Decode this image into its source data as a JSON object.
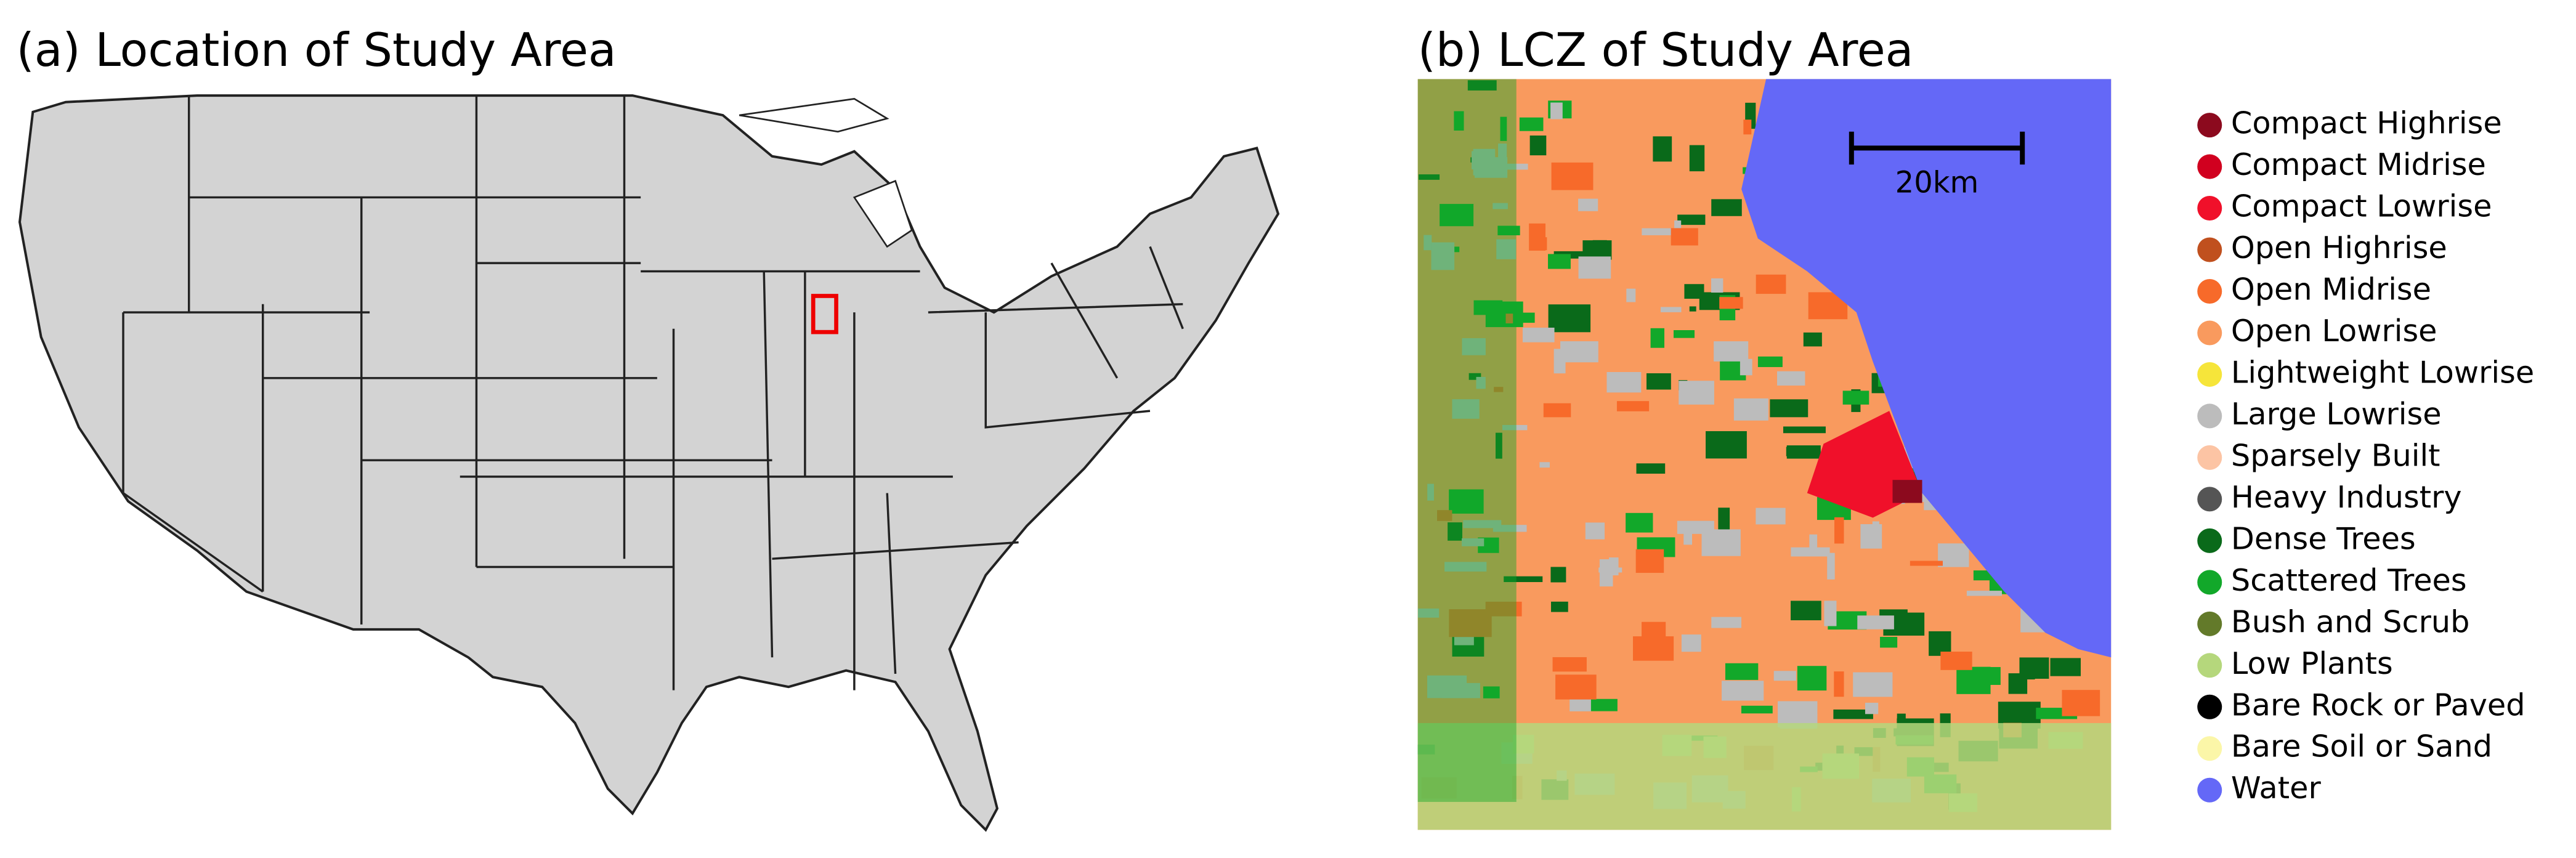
{
  "panel_a": {
    "title": "(a) Location of Study Area"
  },
  "panel_b": {
    "title": "(b) LCZ of Study Area",
    "scale_label": "20km"
  },
  "legend": [
    {
      "label": "Compact Highrise",
      "color": "#8c0a1e"
    },
    {
      "label": "Compact Midrise",
      "color": "#d1001f"
    },
    {
      "label": "Compact Lowrise",
      "color": "#f0102a"
    },
    {
      "label": "Open Highrise",
      "color": "#c0501e"
    },
    {
      "label": "Open Midrise",
      "color": "#f76a2a"
    },
    {
      "label": "Open Lowrise",
      "color": "#f99a5e"
    },
    {
      "label": "Lightweight Lowrise",
      "color": "#f6e53a"
    },
    {
      "label": "Large Lowrise",
      "color": "#bcbcbc"
    },
    {
      "label": "Sparsely Built",
      "color": "#fcc4a4"
    },
    {
      "label": "Heavy Industry",
      "color": "#555555"
    },
    {
      "label": "Dense Trees",
      "color": "#0a6a1a"
    },
    {
      "label": "Scattered Trees",
      "color": "#12a82a"
    },
    {
      "label": "Bush and Scrub",
      "color": "#637a2a"
    },
    {
      "label": "Low Plants",
      "color": "#b5d77c"
    },
    {
      "label": "Bare Rock or Paved",
      "color": "#000000"
    },
    {
      "label": "Bare Soil or Sand",
      "color": "#fbf6a8"
    },
    {
      "label": "Water",
      "color": "#6468f7"
    }
  ]
}
